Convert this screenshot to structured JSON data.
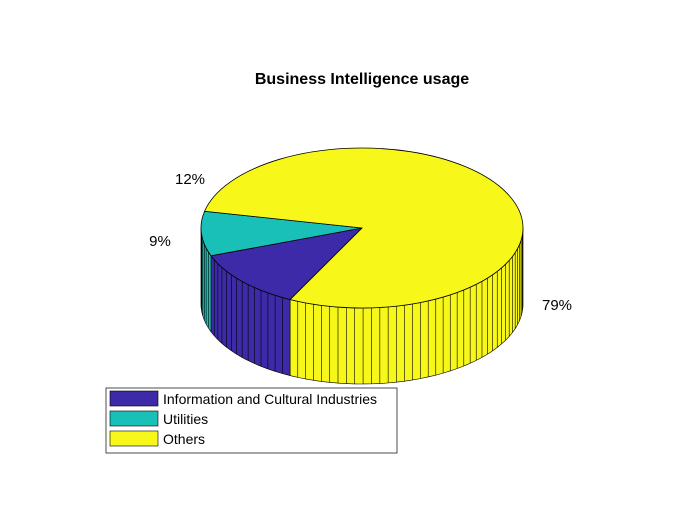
{
  "chart_data": {
    "type": "pie",
    "title": "Business Intelligence usage",
    "categories": [
      "Information and Cultural Industries",
      "Utilities",
      "Others"
    ],
    "values": [
      12,
      9,
      79
    ],
    "labels": [
      "12%",
      "9%",
      "79%"
    ],
    "colors": [
      "#3d2aa8",
      "#19c0b8",
      "#f7f71a"
    ],
    "style": "3d",
    "legend_position": "bottom-left"
  }
}
